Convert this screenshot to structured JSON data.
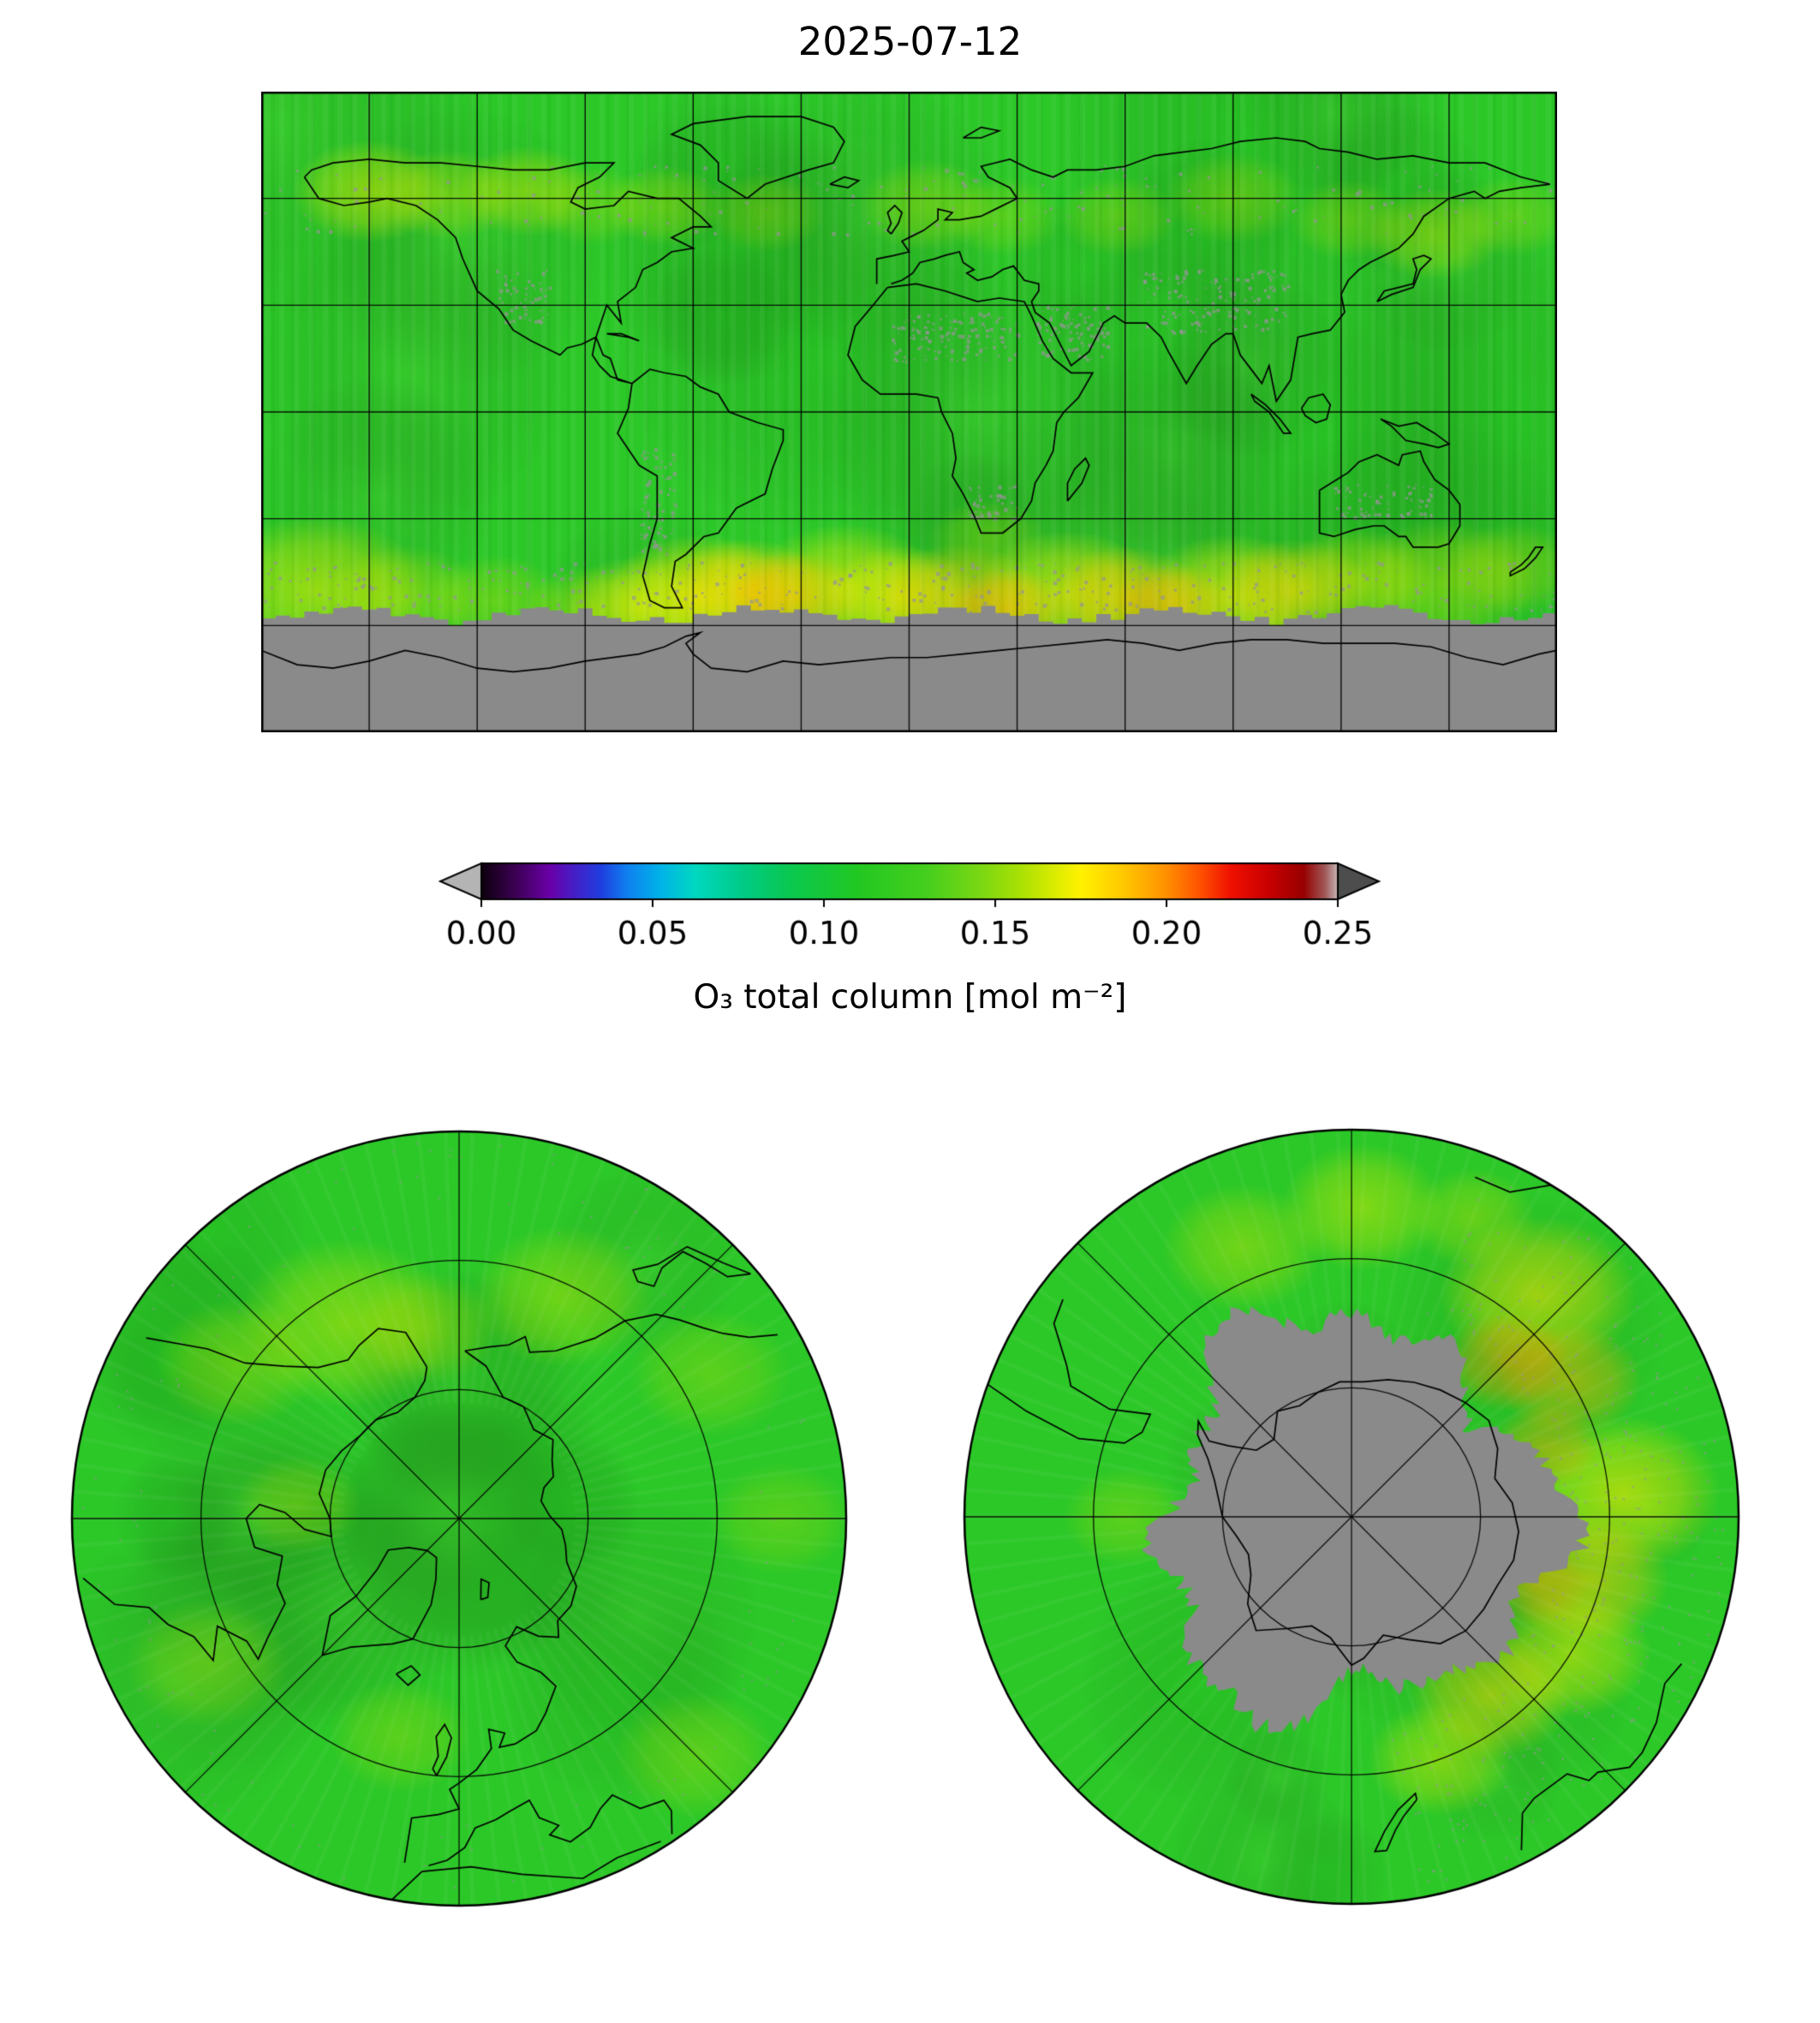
{
  "title": "2025-07-12",
  "chart_data": {
    "type": "heatmap",
    "title": "2025-07-12",
    "date": "2025-07-12",
    "variable": "O₃ total column",
    "units": "mol m⁻²",
    "colorbar": {
      "label": "O₃ total column [mol m⁻²]",
      "tick_values": [
        0.0,
        0.05,
        0.1,
        0.15,
        0.2,
        0.25
      ],
      "tick_labels": [
        "0.00",
        "0.05",
        "0.10",
        "0.15",
        "0.20",
        "0.25"
      ],
      "range": [
        0.0,
        0.25
      ],
      "under_color": "#b4b4b4",
      "over_color": "#4d4d4d",
      "stops": [
        [
          0.0,
          "#0d000d"
        ],
        [
          0.04,
          "#3d0154"
        ],
        [
          0.08,
          "#6a00a8"
        ],
        [
          0.11,
          "#4420c8"
        ],
        [
          0.14,
          "#1f3fdf"
        ],
        [
          0.17,
          "#1080f0"
        ],
        [
          0.21,
          "#00b4e8"
        ],
        [
          0.25,
          "#00d8c0"
        ],
        [
          0.3,
          "#00cc8c"
        ],
        [
          0.36,
          "#0ac850"
        ],
        [
          0.44,
          "#22c822"
        ],
        [
          0.52,
          "#46cf1e"
        ],
        [
          0.58,
          "#78d714"
        ],
        [
          0.63,
          "#aae104"
        ],
        [
          0.67,
          "#dcec00"
        ],
        [
          0.7,
          "#fff200"
        ],
        [
          0.75,
          "#ffc800"
        ],
        [
          0.8,
          "#ff9000"
        ],
        [
          0.84,
          "#ff5000"
        ],
        [
          0.875,
          "#f01000"
        ],
        [
          0.92,
          "#c80000"
        ],
        [
          0.96,
          "#980000"
        ],
        [
          0.985,
          "#a05858"
        ],
        [
          1.0,
          "#c9b6b6"
        ]
      ]
    },
    "map": {
      "base_value": 0.12,
      "base_color": "#2cc828",
      "nodata_color": "#8a8a8a",
      "grid_deg": 30,
      "lat_range": [
        -90,
        90
      ],
      "lon_range": [
        -180,
        180
      ],
      "nodata_lat": -57
    },
    "panels": [
      {
        "name": "global-map",
        "projection": "equirectangular",
        "note": "mostly ~0.12 mol m⁻² (green); yellow/orange band near 50°S; no data (gray) over Antarctica"
      },
      {
        "name": "north-polar",
        "projection": "north-polar",
        "boundary_lat": 30,
        "grid_circles_lat": [
          70,
          50
        ]
      },
      {
        "name": "south-polar",
        "projection": "south-polar",
        "boundary_lat": -30,
        "grid_circles_lat": [
          -70,
          -50
        ],
        "note": "no data (gray) over polar-night region south of ~60°S"
      }
    ],
    "hotspots_global": [
      [
        -165,
        -50,
        13,
        "#f0ee00",
        0.55
      ],
      [
        -140,
        -52,
        9,
        "#d8e800",
        0.4
      ],
      [
        -115,
        -53,
        8,
        "#cce600",
        0.35
      ],
      [
        -88,
        -56,
        8,
        "#d8e800",
        0.4
      ],
      [
        -75,
        -55,
        9,
        "#e8ec00",
        0.5
      ],
      [
        -58,
        -52,
        11,
        "#fff000",
        0.7
      ],
      [
        -45,
        -50,
        9,
        "#ffd800",
        0.7
      ],
      [
        -32,
        -52,
        8,
        "#ffa500",
        0.6
      ],
      [
        -18,
        -49,
        11,
        "#f0ee00",
        0.6
      ],
      [
        -2,
        -52,
        9,
        "#fff000",
        0.55
      ],
      [
        14,
        -53,
        10,
        "#ffcc00",
        0.6
      ],
      [
        28,
        -55,
        7,
        "#ff9900",
        0.55
      ],
      [
        44,
        -51,
        11,
        "#f5ee00",
        0.6
      ],
      [
        60,
        -52,
        9,
        "#ffcc00",
        0.6
      ],
      [
        74,
        -54,
        7,
        "#ff9900",
        0.5
      ],
      [
        90,
        -52,
        11,
        "#fff000",
        0.6
      ],
      [
        107,
        -50,
        9,
        "#ffd000",
        0.5
      ],
      [
        124,
        -47,
        9,
        "#e8ee00",
        0.45
      ],
      [
        148,
        -48,
        11,
        "#d8e800",
        0.4
      ],
      [
        168,
        -44,
        8,
        "#cce400",
        0.35
      ],
      [
        22,
        -36,
        7,
        "#b8e000",
        0.3
      ],
      [
        -150,
        62,
        9,
        "#e8ee00",
        0.5
      ],
      [
        -128,
        61,
        8,
        "#d0e800",
        0.4
      ],
      [
        -106,
        62,
        8,
        "#d8ea00",
        0.45
      ],
      [
        -88,
        58,
        7,
        "#c8e600",
        0.3
      ],
      [
        -68,
        58,
        7,
        "#c8e800",
        0.35
      ],
      [
        -40,
        56,
        7,
        "#bce200",
        0.3
      ],
      [
        5,
        58,
        8,
        "#c8e800",
        0.35
      ],
      [
        26,
        55,
        7,
        "#c0e400",
        0.3
      ],
      [
        58,
        55,
        7,
        "#c4e400",
        0.3
      ],
      [
        90,
        60,
        8,
        "#c8e600",
        0.32
      ],
      [
        122,
        54,
        7,
        "#cce600",
        0.3
      ],
      [
        146,
        50,
        8,
        "#d4e800",
        0.4
      ],
      [
        168,
        55,
        7,
        "#cce400",
        0.3
      ]
    ],
    "hotspots_north": [
      [
        -150,
        55,
        12,
        "#dcea00",
        0.45
      ],
      [
        -125,
        48,
        9,
        "#cce600",
        0.35
      ],
      [
        -170,
        60,
        8,
        "#d0e800",
        0.35
      ],
      [
        155,
        52,
        10,
        "#d4e800",
        0.4
      ],
      [
        120,
        45,
        9,
        "#c8e400",
        0.3
      ],
      [
        -60,
        45,
        9,
        "#c4e200",
        0.3
      ],
      [
        -15,
        55,
        8,
        "#c8e600",
        0.3
      ],
      [
        45,
        38,
        9,
        "#cce600",
        0.3
      ],
      [
        90,
        40,
        8,
        "#c8e400",
        0.28
      ],
      [
        -95,
        65,
        7,
        "#c8e600",
        0.3
      ]
    ],
    "hotspots_south": [
      [
        40,
        -45,
        11,
        "#ffe000",
        0.55
      ],
      [
        58,
        -50,
        8,
        "#ffb000",
        0.5
      ],
      [
        85,
        -48,
        11,
        "#f5ee00",
        0.6
      ],
      [
        105,
        -52,
        9,
        "#ffc800",
        0.55
      ],
      [
        122,
        -50,
        9,
        "#f2ee00",
        0.5
      ],
      [
        142,
        -55,
        9,
        "#ffd800",
        0.5
      ],
      [
        160,
        -50,
        8,
        "#e8ec00",
        0.45
      ],
      [
        2,
        -42,
        9,
        "#e8ee00",
        0.45
      ],
      [
        -22,
        -45,
        9,
        "#d8e800",
        0.4
      ],
      [
        22,
        -40,
        7,
        "#d8e600",
        0.35
      ],
      [
        -90,
        -55,
        7,
        "#cce400",
        0.3
      ],
      [
        45,
        -56,
        7,
        "#ff9000",
        0.5
      ],
      [
        70,
        -58,
        6,
        "#ffa800",
        0.45
      ],
      [
        110,
        -60,
        6,
        "#f0a000",
        0.4
      ]
    ],
    "speckle_regions": [
      [
        -5,
        14,
        30,
        28,
        130
      ],
      [
        35,
        15,
        55,
        30,
        90
      ],
      [
        65,
        22,
        105,
        40,
        150
      ],
      [
        -75,
        -40,
        -65,
        -10,
        80
      ],
      [
        118,
        -30,
        145,
        -20,
        70
      ],
      [
        -115,
        25,
        -100,
        40,
        60
      ],
      [
        15,
        -30,
        30,
        -20,
        50
      ],
      [
        -180,
        -56,
        180,
        -42,
        350
      ],
      [
        -180,
        50,
        180,
        70,
        180
      ]
    ]
  },
  "coastlines": {
    "north_america": [
      -168,
      66,
      -164,
      60,
      -157,
      58,
      -150,
      59,
      -145,
      60,
      -137,
      58,
      -131,
      54,
      -126,
      49,
      -124,
      43,
      -120,
      34,
      -114,
      29,
      -110,
      23,
      -105,
      20,
      -97,
      16,
      -95,
      18,
      -91,
      19,
      -87,
      21,
      -85,
      16,
      -83,
      15,
      -81,
      9,
      -77,
      8,
      -80,
      9,
      -83,
      10,
      -86,
      13,
      -88,
      16,
      -87,
      21,
      -84,
      30,
      -80,
      25,
      -81,
      31,
      -76,
      35,
      -74,
      40,
      -70,
      42,
      -66,
      45,
      -60,
      46,
      -66,
      49,
      -60,
      52,
      -55,
      52,
      -58,
      55,
      -64,
      60,
      -70,
      60,
      -78,
      62,
      -82,
      58,
      -90,
      57,
      -94,
      59,
      -92,
      63,
      -86,
      66,
      -82,
      70,
      -90,
      70,
      -100,
      68,
      -110,
      68,
      -120,
      69,
      -130,
      70,
      -140,
      70,
      -150,
      71,
      -160,
      70,
      -166,
      68,
      -168,
      66
    ],
    "greenland": [
      -45,
      60,
      -53,
      65,
      -53,
      70,
      -58,
      75,
      -66,
      78,
      -60,
      81,
      -45,
      83,
      -30,
      83,
      -21,
      80,
      -18,
      76,
      -21,
      70,
      -28,
      68,
      -40,
      64,
      -45,
      60
    ],
    "iceland": [
      -22,
      64,
      -18,
      66,
      -14,
      65,
      -17,
      63,
      -22,
      64
    ],
    "svalbard": [
      15,
      77,
      20,
      80,
      25,
      79,
      20,
      77,
      15,
      77
    ],
    "south_america": [
      -77,
      8,
      -78,
      1,
      -81,
      -6,
      -75,
      -15,
      -70,
      -18,
      -70,
      -30,
      -72,
      -37,
      -74,
      -46,
      -72,
      -53,
      -68,
      -55,
      -63,
      -55,
      -66,
      -49,
      -65,
      -42,
      -62,
      -40,
      -57,
      -35,
      -53,
      -34,
      -48,
      -27,
      -40,
      -23,
      -38,
      -16,
      -35,
      -8,
      -35,
      -5,
      -42,
      -3,
      -50,
      0,
      -53,
      5,
      -58,
      7,
      -62,
      10,
      -68,
      11,
      -72,
      12,
      -77,
      8
    ],
    "africa": [
      -6,
      35,
      -10,
      30,
      -15,
      24,
      -17,
      16,
      -13,
      9,
      -8,
      5,
      -4,
      5,
      2,
      5,
      8,
      4,
      9,
      0,
      12,
      -6,
      13,
      -13,
      12,
      -18,
      15,
      -23,
      18,
      -29,
      20,
      -34,
      26,
      -34,
      31,
      -30,
      34,
      -25,
      35,
      -20,
      38,
      -15,
      40,
      -11,
      41,
      -3,
      43,
      0,
      47,
      4,
      51,
      11,
      45,
      11,
      40,
      15,
      37,
      20,
      34,
      27,
      32,
      31,
      25,
      32,
      19,
      31,
      10,
      34,
      2,
      36,
      -6,
      35
    ],
    "madagascar": [
      44,
      -25,
      48,
      -20,
      50,
      -15,
      49,
      -13,
      46,
      -16,
      44,
      -20,
      44,
      -25
    ],
    "eurasia_north": [
      -9,
      36,
      -9,
      43,
      -4,
      44,
      0,
      45,
      -2,
      48,
      0,
      49,
      4,
      51,
      8,
      54,
      8,
      57,
      12,
      56,
      10,
      54,
      14,
      54,
      20,
      55,
      24,
      57,
      30,
      60,
      28,
      63,
      22,
      66,
      20,
      69,
      28,
      71,
      34,
      68,
      40,
      66,
      44,
      68,
      52,
      68,
      60,
      69,
      68,
      72,
      76,
      73,
      84,
      74,
      92,
      76,
      102,
      77,
      110,
      76,
      114,
      74,
      122,
      73,
      130,
      71,
      140,
      72,
      150,
      70,
      160,
      70,
      170,
      66,
      178,
      64
    ],
    "eurasia_south": [
      -5,
      36,
      -2,
      37,
      1,
      39,
      3,
      42,
      7,
      43,
      10,
      44,
      14,
      45,
      15,
      42,
      18,
      40,
      16,
      39,
      19,
      37,
      23,
      38,
      26,
      40,
      29,
      41,
      32,
      37,
      36,
      36,
      36,
      34,
      34,
      31,
      35,
      28,
      39,
      25,
      43,
      17,
      45,
      13,
      50,
      17,
      54,
      25,
      57,
      27,
      60,
      25,
      66,
      25,
      70,
      21,
      72,
      17,
      77,
      8,
      80,
      13,
      84,
      19,
      88,
      22,
      90,
      22,
      92,
      16,
      95,
      12,
      98,
      8,
      100,
      13,
      102,
      3,
      106,
      9,
      108,
      21,
      112,
      22,
      117,
      23,
      121,
      28,
      120,
      33,
      122,
      37,
      125,
      40,
      128,
      42,
      132,
      44,
      136,
      46,
      140,
      50,
      143,
      55,
      150,
      60,
      157,
      62,
      160,
      60,
      164,
      62,
      170,
      63,
      178,
      64
    ],
    "uk": [
      -5,
      50,
      -3,
      53,
      -2,
      56,
      -4,
      58,
      -6,
      56,
      -5,
      53,
      -6,
      51,
      -5,
      50
    ],
    "japan": [
      130,
      31,
      132,
      34,
      136,
      35,
      140,
      36,
      141,
      40,
      140,
      43,
      143,
      44,
      145,
      43,
      142,
      40,
      140,
      35,
      134,
      33,
      130,
      31
    ],
    "australia": [
      114,
      -22,
      114,
      -34,
      118,
      -35,
      124,
      -33,
      129,
      -32,
      132,
      -32,
      136,
      -35,
      138,
      -35,
      140,
      -38,
      147,
      -38,
      150,
      -37,
      153,
      -32,
      153,
      -26,
      150,
      -22,
      146,
      -19,
      143,
      -14,
      142,
      -11,
      137,
      -12,
      136,
      -15,
      130,
      -12,
      125,
      -14,
      122,
      -17,
      114,
      -22
    ],
    "new_guinea": [
      131,
      -2,
      136,
      -4,
      141,
      -3,
      146,
      -6,
      150,
      -9,
      147,
      -10,
      143,
      -9,
      138,
      -8,
      134,
      -4,
      131,
      -2
    ],
    "borneo": [
      109,
      1,
      111,
      4,
      115,
      5,
      117,
      2,
      116,
      -2,
      113,
      -3,
      110,
      -1,
      109,
      1
    ],
    "sumatra": [
      95,
      5,
      99,
      2,
      103,
      -2,
      106,
      -6,
      104,
      -6,
      100,
      0,
      96,
      3,
      95,
      5
    ],
    "new_zealand": [
      167,
      -45,
      170,
      -43,
      172,
      -41,
      174,
      -38,
      176,
      -38,
      174,
      -41,
      171,
      -44,
      167,
      -46,
      167,
      -45
    ],
    "cuba": [
      -84,
      22,
      -78,
      21,
      -75,
      20,
      -80,
      22,
      -84,
      22
    ],
    "antarctica": [
      -180,
      -67,
      -170,
      -71,
      -160,
      -72,
      -150,
      -70,
      -140,
      -67,
      -130,
      -69,
      -120,
      -72,
      -110,
      -73,
      -100,
      -72,
      -90,
      -70,
      -75,
      -68,
      -68,
      -66,
      -62,
      -63,
      -58,
      -62,
      -62,
      -65,
      -60,
      -68,
      -55,
      -72,
      -45,
      -73,
      -35,
      -70,
      -25,
      -71,
      -15,
      -70,
      -5,
      -69,
      5,
      -69,
      15,
      -68,
      25,
      -67,
      35,
      -66,
      45,
      -65,
      55,
      -64,
      65,
      -65,
      75,
      -67,
      85,
      -65,
      95,
      -64,
      105,
      -64,
      115,
      -65,
      125,
      -65,
      135,
      -65,
      145,
      -66,
      155,
      -69,
      165,
      -71,
      175,
      -68,
      180,
      -67
    ]
  }
}
